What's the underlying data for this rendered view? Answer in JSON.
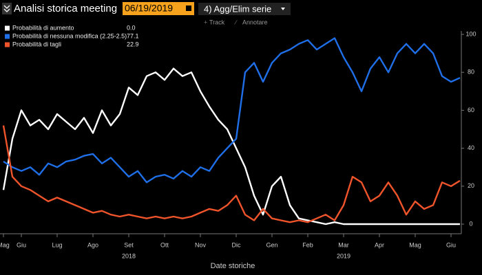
{
  "toolbar": {
    "title": "Analisi storica meeting",
    "date": "06/19/2019",
    "menu": "4) Agg/Elim serie",
    "track": "Track",
    "annotate": "Annotare"
  },
  "chart_data": {
    "type": "line",
    "x_label": "Date storiche",
    "years": [
      "2018",
      "2019"
    ],
    "categories": [
      "Mag",
      null,
      "Giu",
      null,
      null,
      null,
      "Lug",
      null,
      null,
      null,
      "Ago",
      null,
      null,
      null,
      "Set",
      null,
      null,
      null,
      "Ott",
      null,
      null,
      null,
      "Nov",
      null,
      null,
      null,
      "Dic",
      null,
      null,
      null,
      "Gen",
      null,
      null,
      null,
      "Feb",
      null,
      null,
      null,
      "Mar",
      null,
      null,
      null,
      "Apr",
      null,
      null,
      null,
      "Mag",
      null,
      null,
      null,
      "Giu",
      null
    ],
    "series": [
      {
        "name": "Probabilità di aumento",
        "color": "#ffffff",
        "last_label": "0.0",
        "values": [
          18,
          45,
          60,
          52,
          55,
          50,
          58,
          54,
          50,
          56,
          48,
          60,
          52,
          58,
          72,
          68,
          78,
          80,
          76,
          82,
          78,
          80,
          70,
          62,
          55,
          50,
          40,
          30,
          15,
          5,
          20,
          25,
          10,
          3,
          2,
          1,
          0,
          1,
          0,
          0,
          0,
          0,
          0,
          0,
          0,
          0,
          0,
          0,
          0,
          0,
          0,
          0
        ]
      },
      {
        "name": "Probabilità di nessuna modifica (2.25-2.5)",
        "color": "#1f6fe8",
        "last_label": "77.1",
        "values": [
          33,
          30,
          28,
          30,
          26,
          32,
          30,
          33,
          34,
          36,
          37,
          32,
          35,
          30,
          25,
          28,
          22,
          25,
          26,
          24,
          28,
          25,
          30,
          28,
          35,
          40,
          45,
          80,
          85,
          75,
          85,
          90,
          92,
          95,
          97,
          92,
          95,
          98,
          88,
          80,
          70,
          82,
          88,
          80,
          90,
          95,
          90,
          95,
          90,
          78,
          75,
          77.1
        ]
      },
      {
        "name": "Probabilità di tagli",
        "color": "#f0542a",
        "last_label": "22.9",
        "values": [
          52,
          25,
          20,
          18,
          15,
          12,
          14,
          12,
          10,
          8,
          6,
          7,
          5,
          4,
          5,
          4,
          3,
          4,
          3,
          4,
          3,
          4,
          6,
          8,
          7,
          10,
          15,
          5,
          2,
          8,
          3,
          2,
          1,
          2,
          1,
          3,
          5,
          2,
          10,
          25,
          22,
          12,
          15,
          22,
          15,
          5,
          12,
          8,
          10,
          22,
          20,
          22.9
        ]
      }
    ],
    "ylim": [
      0,
      100
    ],
    "yticks": [
      0,
      20,
      40,
      60,
      80,
      100
    ],
    "grid": false
  }
}
